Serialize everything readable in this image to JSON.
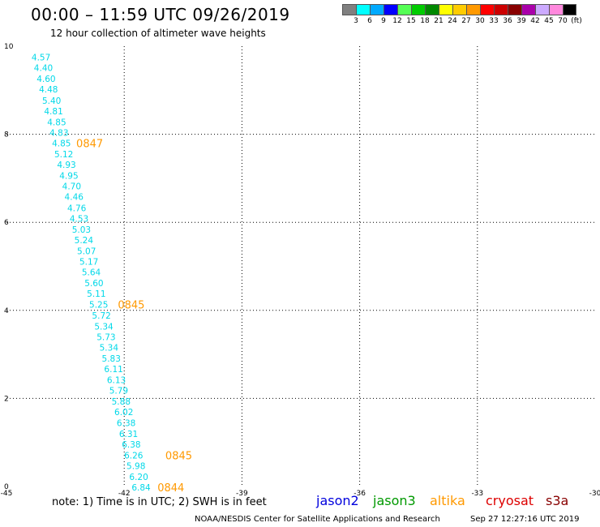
{
  "header": {
    "title": "00:00 – 11:59 UTC 09/26/2019",
    "subtitle": "12 hour collection of altimeter wave heights"
  },
  "colorbar": {
    "labels": [
      "3",
      "6",
      "9",
      "12",
      "15",
      "18",
      "21",
      "24",
      "27",
      "30",
      "33",
      "36",
      "39",
      "42",
      "45",
      "70",
      "(ft)"
    ],
    "colors": [
      "#808080",
      "#00ffff",
      "#00aaff",
      "#0000ff",
      "#55ff55",
      "#00cc00",
      "#008800",
      "#ffff00",
      "#ffcc00",
      "#ff9900",
      "#ff0000",
      "#cc0000",
      "#880000",
      "#aa00aa",
      "#ccaaff",
      "#ff88dd",
      "#000000"
    ]
  },
  "chart_data": {
    "type": "scatter",
    "xlim": [
      -45,
      -30
    ],
    "ylim": [
      0,
      10
    ],
    "x_ticks": [
      "-45",
      "-42",
      "-39",
      "-36",
      "-33",
      "-30"
    ],
    "y_ticks": [
      "0",
      "2",
      "4",
      "6",
      "8",
      "10"
    ],
    "grid": true,
    "point_color": "#00d8e8",
    "time_color": "#ff9900",
    "points": [
      {
        "x": -44.12,
        "y": 9.75,
        "label": "4.57"
      },
      {
        "x": -44.06,
        "y": 9.51,
        "label": "4.40"
      },
      {
        "x": -43.99,
        "y": 9.26,
        "label": "4.60"
      },
      {
        "x": -43.93,
        "y": 9.02,
        "label": "4.48"
      },
      {
        "x": -43.85,
        "y": 8.77,
        "label": "5.40"
      },
      {
        "x": -43.8,
        "y": 8.53,
        "label": "4.81"
      },
      {
        "x": -43.72,
        "y": 8.28,
        "label": "4.85"
      },
      {
        "x": -43.66,
        "y": 8.04,
        "label": "4.83"
      },
      {
        "x": -43.6,
        "y": 7.8,
        "label": "4.85"
      },
      {
        "x": -43.54,
        "y": 7.55,
        "label": "5.12"
      },
      {
        "x": -43.47,
        "y": 7.31,
        "label": "4.93"
      },
      {
        "x": -43.41,
        "y": 7.06,
        "label": "4.95"
      },
      {
        "x": -43.34,
        "y": 6.82,
        "label": "4.70"
      },
      {
        "x": -43.28,
        "y": 6.58,
        "label": "4.46"
      },
      {
        "x": -43.21,
        "y": 6.33,
        "label": "4.76"
      },
      {
        "x": -43.15,
        "y": 6.09,
        "label": "4.53"
      },
      {
        "x": -43.09,
        "y": 5.84,
        "label": "5.03"
      },
      {
        "x": -43.03,
        "y": 5.6,
        "label": "5.24"
      },
      {
        "x": -42.96,
        "y": 5.35,
        "label": "5.07"
      },
      {
        "x": -42.9,
        "y": 5.11,
        "label": "5.17"
      },
      {
        "x": -42.84,
        "y": 4.87,
        "label": "5.64"
      },
      {
        "x": -42.77,
        "y": 4.62,
        "label": "5.60"
      },
      {
        "x": -42.71,
        "y": 4.38,
        "label": "5.11"
      },
      {
        "x": -42.65,
        "y": 4.13,
        "label": "5.25"
      },
      {
        "x": -42.58,
        "y": 3.89,
        "label": "5.72"
      },
      {
        "x": -42.52,
        "y": 3.64,
        "label": "5.34"
      },
      {
        "x": -42.46,
        "y": 3.4,
        "label": "5.73"
      },
      {
        "x": -42.39,
        "y": 3.16,
        "label": "5.34"
      },
      {
        "x": -42.33,
        "y": 2.91,
        "label": "5.83"
      },
      {
        "x": -42.27,
        "y": 2.67,
        "label": "6.11"
      },
      {
        "x": -42.2,
        "y": 2.42,
        "label": "6.13"
      },
      {
        "x": -42.14,
        "y": 2.18,
        "label": "5.79"
      },
      {
        "x": -42.08,
        "y": 1.93,
        "label": "5.88"
      },
      {
        "x": -42.01,
        "y": 1.69,
        "label": "6.02"
      },
      {
        "x": -41.95,
        "y": 1.45,
        "label": "6.38"
      },
      {
        "x": -41.89,
        "y": 1.2,
        "label": "6.31"
      },
      {
        "x": -41.82,
        "y": 0.96,
        "label": "6.38"
      },
      {
        "x": -41.76,
        "y": 0.71,
        "label": "6.26"
      },
      {
        "x": -41.7,
        "y": 0.47,
        "label": "5.98"
      },
      {
        "x": -41.63,
        "y": 0.22,
        "label": "6.20"
      },
      {
        "x": -41.57,
        "y": -0.02,
        "label": "6.84"
      }
    ],
    "time_labels": [
      {
        "x": -42.88,
        "y": 7.8,
        "label": "0847"
      },
      {
        "x": -41.82,
        "y": 4.13,
        "label": "0845"
      },
      {
        "x": -40.61,
        "y": 0.71,
        "label": "0845"
      },
      {
        "x": -40.81,
        "y": -0.02,
        "label": "0844"
      }
    ]
  },
  "footer": {
    "note": "note:  1) Time is in UTC;  2) SWH is in feet",
    "satellites": [
      {
        "name": "jason2",
        "color": "#0000dd"
      },
      {
        "name": "jason3",
        "color": "#009900"
      },
      {
        "name": "altika",
        "color": "#ff9900"
      },
      {
        "name": "cryosat",
        "color": "#dd0000"
      },
      {
        "name": "s3a",
        "color": "#880000"
      }
    ],
    "credit": "NOAA/NESDIS Center for Satellite Applications and Research",
    "timestamp": "Sep 27 12:27:16 UTC 2019"
  }
}
